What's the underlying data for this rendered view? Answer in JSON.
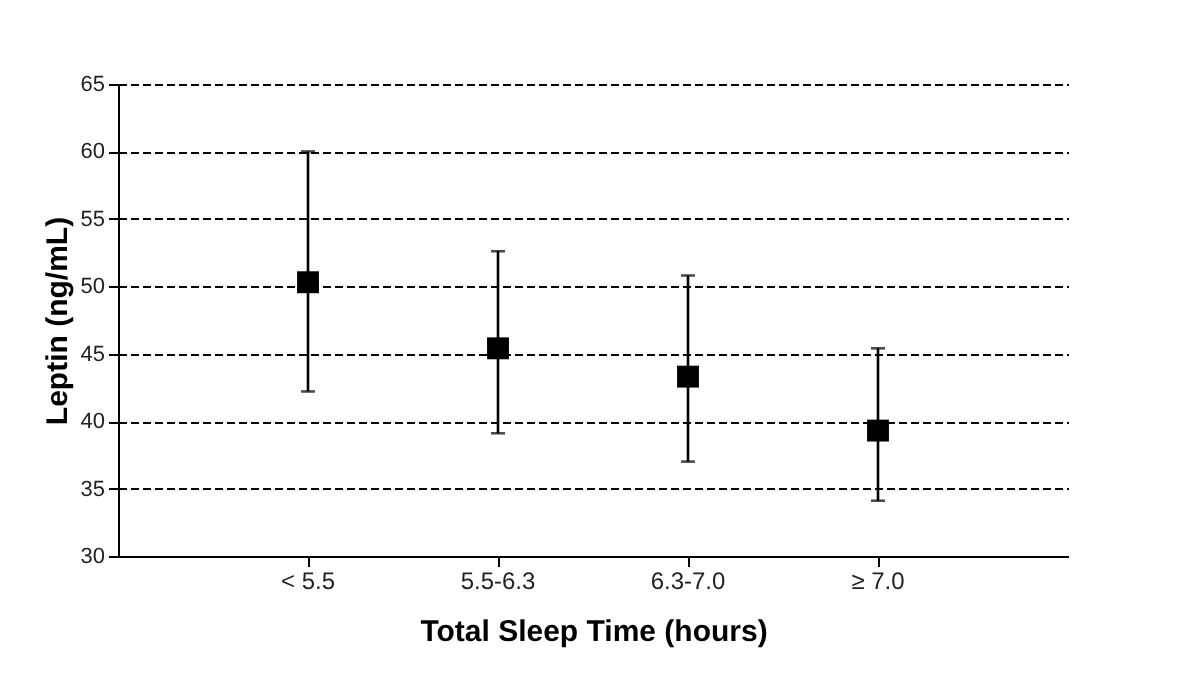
{
  "chart_data": {
    "type": "scatter",
    "xlabel": "Total Sleep Time (hours)",
    "ylabel": "Leptin (ng/mL)",
    "categories": [
      "< 5.5",
      "5.5-6.3",
      "6.3-7.0",
      "≥ 7.0"
    ],
    "series": [
      {
        "color": "#000000",
        "values": [
          50.3,
          45.4,
          43.3,
          39.3
        ],
        "errors": [
          [
            42.2,
            60.0
          ],
          [
            39.1,
            52.6
          ],
          [
            37.0,
            50.8
          ],
          [
            34.1,
            45.4
          ]
        ]
      }
    ],
    "ylim": [
      30,
      65
    ],
    "yticks": [
      30,
      35,
      40,
      45,
      50,
      55,
      60,
      65
    ],
    "grid": "y",
    "marker": "square",
    "legend": false
  }
}
